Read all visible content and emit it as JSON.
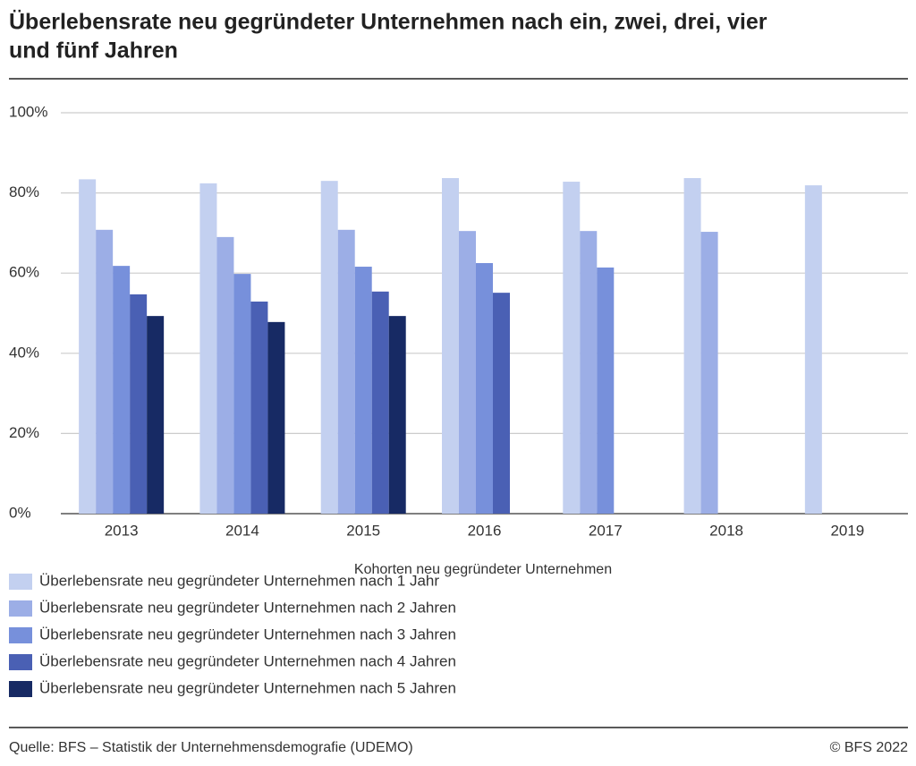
{
  "chart_data": {
    "type": "bar",
    "title": "Überlebensrate neu gegründeter Unternehmen nach ein, zwei, drei, vier",
    "title_line2": "und fünf Jahren",
    "x_label": "Kohorten neu gegründeter Unternehmen",
    "categories": [
      "2013",
      "2014",
      "2015",
      "2016",
      "2017",
      "2018",
      "2019"
    ],
    "series": [
      {
        "name": "Überlebensrate neu gegründeter Unternehmen nach 1 Jahr",
        "color": "#c3d0f0",
        "values": [
          83.4,
          82.4,
          83.0,
          83.7,
          82.8,
          83.7,
          81.9
        ]
      },
      {
        "name": "Überlebensrate neu gegründeter Unternehmen nach 2 Jahren",
        "color": "#9caee6",
        "values": [
          70.8,
          69.0,
          70.8,
          70.5,
          70.5,
          70.3,
          null
        ]
      },
      {
        "name": "Überlebensrate neu gegründeter Unternehmen nach 3 Jahren",
        "color": "#7790db",
        "values": [
          61.8,
          59.8,
          61.6,
          62.5,
          61.4,
          null,
          null
        ]
      },
      {
        "name": "Überlebensrate neu gegründeter Unternehmen nach 4 Jahren",
        "color": "#4a60b4",
        "values": [
          54.7,
          52.9,
          55.4,
          55.1,
          null,
          null,
          null
        ]
      },
      {
        "name": "Überlebensrate neu gegründeter Unternehmen nach 5 Jahren",
        "color": "#172a64",
        "values": [
          49.3,
          47.8,
          49.3,
          null,
          null,
          null,
          null
        ]
      }
    ],
    "ylim": [
      0,
      100
    ],
    "yticks": [
      {
        "value": 0,
        "label": "0%"
      },
      {
        "value": 20,
        "label": "20%"
      },
      {
        "value": 40,
        "label": "40%"
      },
      {
        "value": 60,
        "label": "60%"
      },
      {
        "value": 80,
        "label": "80%"
      },
      {
        "value": 100,
        "label": "100%"
      }
    ],
    "grid": true,
    "source": "Quelle: BFS – Statistik der Unternehmensdemografie (UDEMO)",
    "copyright": "© BFS 2022"
  }
}
